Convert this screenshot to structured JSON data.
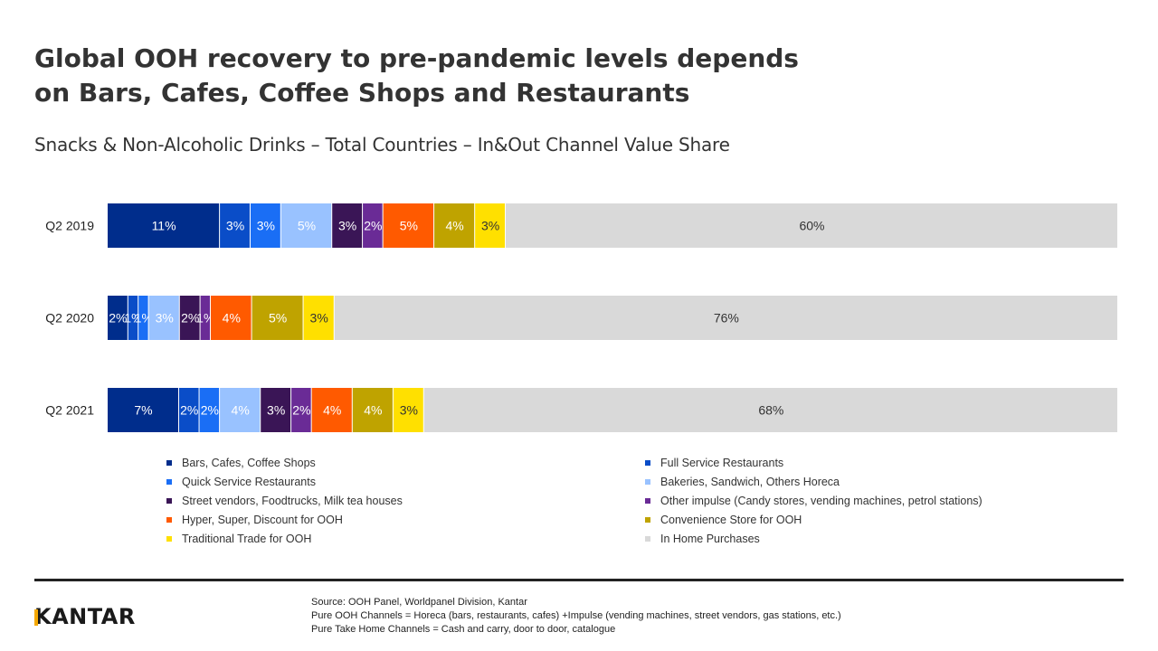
{
  "title_lines": [
    "Global OOH recovery to pre-pandemic levels depends",
    "on Bars, Cafes, Coffee Shops and Restaurants"
  ],
  "subtitle": "Snacks & Non-Alcoholic Drinks – Total Countries – In&Out Channel Value Share",
  "chart_data": {
    "type": "bar",
    "orientation": "horizontal",
    "stacked": true,
    "normalized_to": 100,
    "categories": [
      "Q2 2019",
      "Q2 2020",
      "Q2 2021"
    ],
    "series": [
      {
        "name": "Bars, Cafes, Coffee Shops",
        "color": "#002d8c",
        "text_color": "#ffffff",
        "values": [
          11,
          2,
          7
        ],
        "labels": [
          "11%",
          "2%",
          "7%"
        ]
      },
      {
        "name": "Full Service Restaurants",
        "color": "#0a4dc8",
        "text_color": "#ffffff",
        "values": [
          3,
          1,
          2
        ],
        "labels": [
          "3%",
          "1%",
          "2%"
        ]
      },
      {
        "name": "Quick Service Restaurants",
        "color": "#1a6ef5",
        "text_color": "#ffffff",
        "values": [
          3,
          1,
          2
        ],
        "labels": [
          "3%",
          "1%",
          "2%"
        ]
      },
      {
        "name": "Bakeries, Sandwich, Others Horeca",
        "color": "#99c2ff",
        "text_color": "#ffffff",
        "values": [
          5,
          3,
          4
        ],
        "labels": [
          "5%",
          "3%",
          "4%"
        ]
      },
      {
        "name": "Street vendors, Foodtrucks, Milk tea houses",
        "color": "#3a1556",
        "text_color": "#ffffff",
        "values": [
          3,
          2,
          3
        ],
        "labels": [
          "3%",
          "2%",
          "3%"
        ]
      },
      {
        "name": "Other impulse (Candy stores, vending machines, petrol stations)",
        "color": "#6a2b96",
        "text_color": "#ffffff",
        "values": [
          2,
          1,
          2
        ],
        "labels": [
          "2%",
          "1%",
          "2%"
        ]
      },
      {
        "name": "Hyper, Super, Discount for OOH",
        "color": "#ff5a00",
        "text_color": "#ffffff",
        "values": [
          5,
          4,
          4
        ],
        "labels": [
          "5%",
          "4%",
          "4%"
        ]
      },
      {
        "name": "Convenience Store for OOH",
        "color": "#bfa300",
        "text_color": "#ffffff",
        "values": [
          4,
          5,
          4
        ],
        "labels": [
          "4%",
          "5%",
          "4%"
        ]
      },
      {
        "name": "Traditional Trade for OOH",
        "color": "#ffe000",
        "text_color": "#333333",
        "values": [
          3,
          3,
          3
        ],
        "labels": [
          "3%",
          "3%",
          "3%"
        ]
      },
      {
        "name": "In Home Purchases",
        "color": "#d9d9d9",
        "text_color": "#333333",
        "values": [
          60,
          76,
          68
        ],
        "labels": [
          "60%",
          "76%",
          "68%"
        ]
      }
    ],
    "legend_position": "bottom"
  },
  "footer": {
    "logo": "KANTAR",
    "source_lines": [
      "Source: OOH Panel, Worldpanel Division, Kantar",
      "Pure OOH Channels = Horeca (bars, restaurants, cafes) +Impulse (vending machines, street vendors, gas stations, etc.)",
      "Pure Take Home Channels = Cash and carry, door to door, catalogue"
    ]
  }
}
